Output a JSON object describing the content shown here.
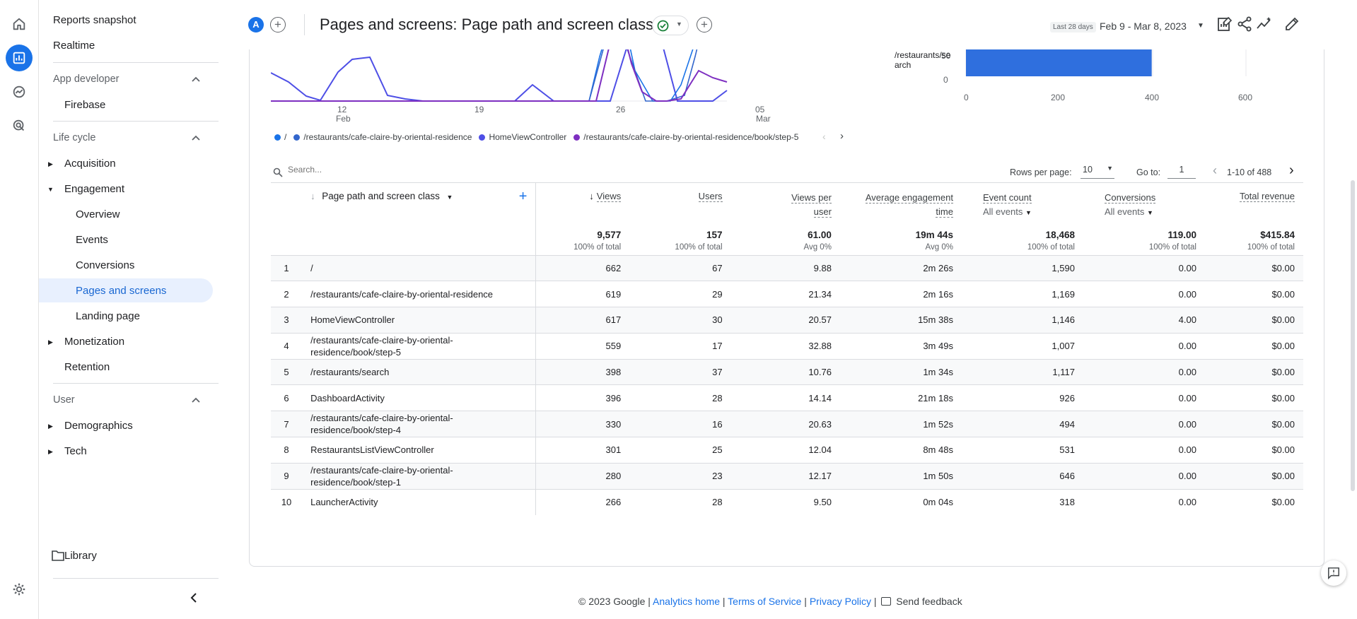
{
  "nav": {
    "reports_snapshot": "Reports snapshot",
    "realtime": "Realtime",
    "app_developer": "App developer",
    "firebase": "Firebase",
    "life_cycle": "Life cycle",
    "acquisition": "Acquisition",
    "engagement": "Engagement",
    "overview": "Overview",
    "events": "Events",
    "conversions": "Conversions",
    "pages_and_screens": "Pages and screens",
    "landing_page": "Landing page",
    "monetization": "Monetization",
    "retention": "Retention",
    "user": "User",
    "demographics": "Demographics",
    "tech": "Tech",
    "library": "Library"
  },
  "header": {
    "avatar_letter": "A",
    "title": "Pages and screens: Page path and screen class",
    "date_small": "Last 28 days",
    "date_range": "Feb 9 - Mar 8, 2023"
  },
  "line_chart": {
    "x_labels": [
      "12",
      "19",
      "26",
      "05"
    ],
    "x_sublabels": [
      "Feb",
      "Mar"
    ],
    "y_labels": [
      "50",
      "0"
    ],
    "legend": [
      {
        "label": "/",
        "color": "#1a73e8"
      },
      {
        "label": "/restaurants/cafe-claire-by-oriental-residence",
        "color": "#3366cc"
      },
      {
        "label": "HomeViewController",
        "color": "#4e4fe6"
      },
      {
        "label": "/restaurants/cafe-claire-by-oriental-residence/book/step-5",
        "color": "#7e2fc1"
      }
    ]
  },
  "bar_chart": {
    "category_line1": "/restaurants/se",
    "category_line2": "arch",
    "value": 398,
    "ticks": [
      "0",
      "200",
      "400",
      "600"
    ],
    "color": "#2f6fde"
  },
  "table_controls": {
    "search_placeholder": "Search...",
    "rows_per_page_label": "Rows per page:",
    "rows_per_page_value": "10",
    "go_to_label": "Go to:",
    "go_to_value": "1",
    "range": "1-10 of 488"
  },
  "table": {
    "dimension_header": "Page path and screen class",
    "col_views": "Views",
    "col_users": "Users",
    "col_vpu_1": "Views per",
    "col_vpu_2": "user",
    "col_aet_1": "Average engagement",
    "col_aet_2": "time",
    "col_events": "Event count",
    "col_events_sub": "All events",
    "col_conv": "Conversions",
    "col_conv_sub": "All events",
    "col_rev": "Total revenue",
    "totals": {
      "views": "9,577",
      "views_sub": "100% of total",
      "users": "157",
      "users_sub": "100% of total",
      "vpu": "61.00",
      "vpu_sub": "Avg 0%",
      "aet": "19m 44s",
      "aet_sub": "Avg 0%",
      "events": "18,468",
      "events_sub": "100% of total",
      "conv": "119.00",
      "conv_sub": "100% of total",
      "rev": "$415.84",
      "rev_sub": "100% of total"
    },
    "rows": [
      {
        "n": "1",
        "page": "/",
        "views": "662",
        "users": "67",
        "vpu": "9.88",
        "aet": "2m 26s",
        "events": "1,590",
        "conv": "0.00",
        "rev": "$0.00"
      },
      {
        "n": "2",
        "page": "/restaurants/cafe-claire-by-oriental-residence",
        "views": "619",
        "users": "29",
        "vpu": "21.34",
        "aet": "2m 16s",
        "events": "1,169",
        "conv": "0.00",
        "rev": "$0.00"
      },
      {
        "n": "3",
        "page": "HomeViewController",
        "views": "617",
        "users": "30",
        "vpu": "20.57",
        "aet": "15m 38s",
        "events": "1,146",
        "conv": "4.00",
        "rev": "$0.00"
      },
      {
        "n": "4",
        "page": "/restaurants/cafe-claire-by-oriental-residence/book/step-5",
        "views": "559",
        "users": "17",
        "vpu": "32.88",
        "aet": "3m 49s",
        "events": "1,007",
        "conv": "0.00",
        "rev": "$0.00"
      },
      {
        "n": "5",
        "page": "/restaurants/search",
        "views": "398",
        "users": "37",
        "vpu": "10.76",
        "aet": "1m 34s",
        "events": "1,117",
        "conv": "0.00",
        "rev": "$0.00"
      },
      {
        "n": "6",
        "page": "DashboardActivity",
        "views": "396",
        "users": "28",
        "vpu": "14.14",
        "aet": "21m 18s",
        "events": "926",
        "conv": "0.00",
        "rev": "$0.00"
      },
      {
        "n": "7",
        "page": "/restaurants/cafe-claire-by-oriental-residence/book/step-4",
        "views": "330",
        "users": "16",
        "vpu": "20.63",
        "aet": "1m 52s",
        "events": "494",
        "conv": "0.00",
        "rev": "$0.00"
      },
      {
        "n": "8",
        "page": "RestaurantsListViewController",
        "views": "301",
        "users": "25",
        "vpu": "12.04",
        "aet": "8m 48s",
        "events": "531",
        "conv": "0.00",
        "rev": "$0.00"
      },
      {
        "n": "9",
        "page": "/restaurants/cafe-claire-by-oriental-residence/book/step-1",
        "views": "280",
        "users": "23",
        "vpu": "12.17",
        "aet": "1m 50s",
        "events": "646",
        "conv": "0.00",
        "rev": "$0.00"
      },
      {
        "n": "10",
        "page": "LauncherActivity",
        "views": "266",
        "users": "28",
        "vpu": "9.50",
        "aet": "0m 04s",
        "events": "318",
        "conv": "0.00",
        "rev": "$0.00"
      }
    ]
  },
  "footer": {
    "copyright": "© 2023 Google |",
    "analytics_home": "Analytics home",
    "terms": "Terms of Service",
    "privacy": "Privacy Policy",
    "send_feedback": "Send feedback",
    "sep": "|"
  }
}
